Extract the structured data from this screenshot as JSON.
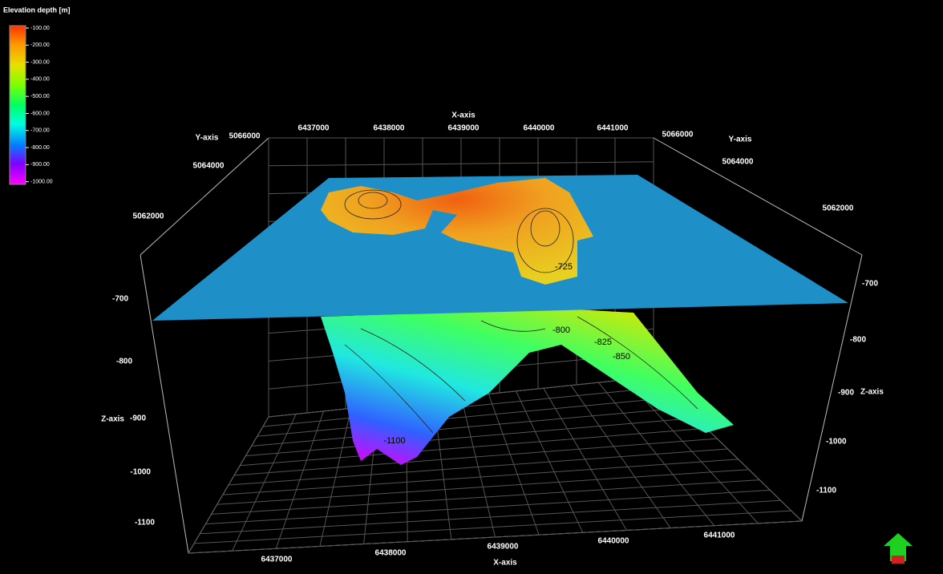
{
  "legend": {
    "title": "Elevation depth [m]",
    "labels": [
      "-100.00",
      "-200.00",
      "-300.00",
      "-400.00",
      "-500.00",
      "-600.00",
      "-700.00",
      "-800.00",
      "-900.00",
      "-1000.00"
    ]
  },
  "x_axis_top": {
    "title": "X-axis",
    "ticks": [
      6437000,
      6438000,
      6439000,
      6440000,
      6441000
    ]
  },
  "y_axis_left": {
    "title": "Y-axis",
    "ticks": [
      5066000,
      5064000,
      5062000
    ]
  },
  "y_axis_right": {
    "title": "Y-axis",
    "ticks": [
      5066000,
      5064000,
      5062000
    ]
  },
  "z_axis_left": {
    "title": "Z-axis",
    "ticks": [
      -700,
      -800,
      -900,
      -1000,
      -1100
    ]
  },
  "z_axis_right": {
    "title": "Z-axis",
    "ticks": [
      -700,
      -800,
      -900,
      -1000,
      -1100
    ]
  },
  "x_axis_bottom": {
    "title": "X-axis",
    "ticks": [
      6437000,
      6438000,
      6439000,
      6440000,
      6441000
    ]
  },
  "contour_labels": [
    "-725",
    "-800",
    "-825",
    "-850",
    "-1100"
  ]
}
